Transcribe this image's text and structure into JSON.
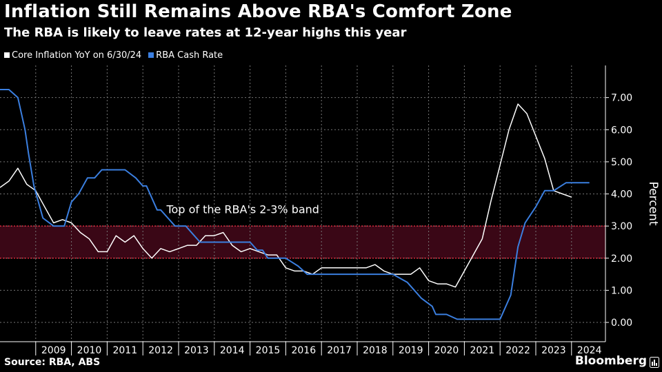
{
  "header": {
    "title": "Inflation Still Remains Above RBA's Comfort Zone",
    "subtitle": "The RBA is likely to leave rates at 12-year highs this year"
  },
  "footer": {
    "source": "Source: RBA, ABS",
    "brand": "Bloomberg",
    "brand_icon": "bloomberg-terminal-icon"
  },
  "colors": {
    "background": "#000000",
    "core_inflation": "#ffffff",
    "cash_rate": "#3b7fe0",
    "band_fill": "#3a0716",
    "band_line": "#d8283d",
    "grid": "#777777"
  },
  "chart_data": {
    "type": "line",
    "title": "Inflation Still Remains Above RBA's Comfort Zone",
    "subtitle": "The RBA is likely to leave rates at 12-year highs this year",
    "ylabel": "Percent",
    "xlabel": "",
    "ylim": [
      -0.6,
      8.0
    ],
    "xlim": [
      2008.0,
      2024.95
    ],
    "y_ticks": [
      0,
      1,
      2,
      3,
      4,
      5,
      6,
      7
    ],
    "y_tick_labels": [
      "0.00",
      "1.00",
      "2.00",
      "3.00",
      "4.00",
      "5.00",
      "6.00",
      "7.00"
    ],
    "x_ticks": [
      "2009",
      "2010",
      "2011",
      "2012",
      "2013",
      "2014",
      "2015",
      "2016",
      "2017",
      "2018",
      "2019",
      "2020",
      "2021",
      "2022",
      "2023",
      "2024"
    ],
    "grid": true,
    "legend_position": "top-left",
    "annotations": [
      {
        "text": "Top of the RBA's 2-3% band",
        "x": 2014.8,
        "y": 3.4
      }
    ],
    "shaded_band": {
      "from": 2.0,
      "to": 3.0
    },
    "series": [
      {
        "name": "Core Inflation YoY on 6/30/24",
        "color": "#ffffff",
        "x": [
          2008.0,
          2008.25,
          2008.5,
          2008.75,
          2009.0,
          2009.25,
          2009.5,
          2009.75,
          2010.0,
          2010.25,
          2010.5,
          2010.75,
          2011.0,
          2011.25,
          2011.5,
          2011.75,
          2012.0,
          2012.25,
          2012.5,
          2012.75,
          2013.0,
          2013.25,
          2013.5,
          2013.75,
          2014.0,
          2014.25,
          2014.5,
          2014.75,
          2015.0,
          2015.25,
          2015.5,
          2015.75,
          2016.0,
          2016.25,
          2016.5,
          2016.75,
          2017.0,
          2017.25,
          2017.5,
          2017.75,
          2018.0,
          2018.25,
          2018.5,
          2018.75,
          2019.0,
          2019.25,
          2019.5,
          2019.75,
          2020.0,
          2020.25,
          2020.5,
          2020.75,
          2021.0,
          2021.25,
          2021.5,
          2021.75,
          2022.0,
          2022.25,
          2022.5,
          2022.75,
          2023.0,
          2023.25,
          2023.5,
          2023.75,
          2024.0,
          2024.25
        ],
        "values": [
          4.2,
          4.4,
          4.8,
          4.3,
          4.1,
          3.6,
          3.1,
          3.2,
          3.1,
          2.8,
          2.6,
          2.2,
          2.2,
          2.7,
          2.5,
          2.7,
          2.3,
          2.0,
          2.3,
          2.2,
          2.3,
          2.4,
          2.4,
          2.7,
          2.7,
          2.8,
          2.4,
          2.2,
          2.3,
          2.2,
          2.1,
          2.1,
          1.7,
          1.6,
          1.6,
          1.5,
          1.7,
          1.7,
          1.7,
          1.7,
          1.7,
          1.7,
          1.8,
          1.6,
          1.5,
          1.5,
          1.5,
          1.7,
          1.3,
          1.2,
          1.2,
          1.1,
          1.6,
          2.1,
          2.6,
          3.8,
          4.9,
          6.0,
          6.8,
          6.5,
          5.8,
          5.1,
          4.1,
          4.0,
          3.9,
          null
        ]
      },
      {
        "name": "RBA Cash Rate",
        "color": "#3b7fe0",
        "x": [
          2008.0,
          2008.25,
          2008.5,
          2008.7,
          2008.8,
          2008.95,
          2009.2,
          2009.5,
          2009.8,
          2010.0,
          2010.2,
          2010.45,
          2010.65,
          2010.85,
          2011.0,
          2011.5,
          2011.8,
          2012.0,
          2012.1,
          2012.4,
          2012.5,
          2012.7,
          2012.9,
          2013.2,
          2013.4,
          2013.6,
          2013.8,
          2014.0,
          2014.5,
          2015.0,
          2015.2,
          2015.35,
          2015.5,
          2016.0,
          2016.35,
          2016.6,
          2017.0,
          2018.0,
          2019.0,
          2019.4,
          2019.6,
          2019.8,
          2020.1,
          2020.2,
          2020.5,
          2020.8,
          2021.0,
          2021.5,
          2022.0,
          2022.3,
          2022.5,
          2022.7,
          2023.0,
          2023.25,
          2023.5,
          2023.85,
          2024.0,
          2024.5
        ],
        "values": [
          7.25,
          7.25,
          7.0,
          6.0,
          5.25,
          4.25,
          3.25,
          3.0,
          3.0,
          3.75,
          4.0,
          4.5,
          4.5,
          4.75,
          4.75,
          4.75,
          4.5,
          4.25,
          4.25,
          3.5,
          3.5,
          3.25,
          3.0,
          3.0,
          2.75,
          2.5,
          2.5,
          2.5,
          2.5,
          2.5,
          2.25,
          2.25,
          2.0,
          2.0,
          1.75,
          1.5,
          1.5,
          1.5,
          1.5,
          1.25,
          1.0,
          0.75,
          0.5,
          0.25,
          0.25,
          0.1,
          0.1,
          0.1,
          0.1,
          0.85,
          2.35,
          3.1,
          3.6,
          4.1,
          4.1,
          4.35,
          4.35,
          4.35
        ]
      }
    ]
  }
}
